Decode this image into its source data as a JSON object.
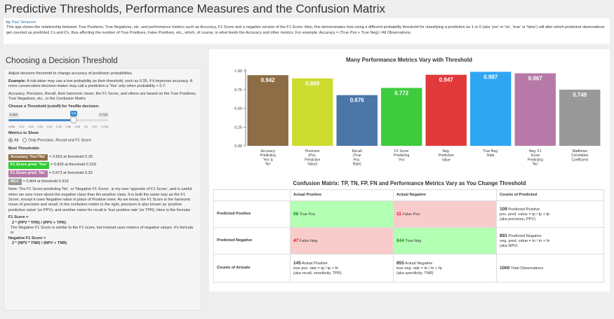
{
  "page": {
    "title": "Predictive Thresholds, Performance Measures and the Confusion Matrix",
    "by_prefix": "by ",
    "author": "Paul Simpson",
    "intro": "This app shows the relationship between True Positives, True Negatives, etc. and performance metrics such as Accuracy, F1 Score and a negative version of the F1 Score. Also, this demonstrates how using a different probability threshold for classifying a prediction as 1 or 0 (aka 'yes' or 'no', 'true' or 'false') will alter which predicted observations get counted as predicted 1's and 0's, thus affecting the number of True Positives, False Positives, etc., which, of course, is what feeds the Accuracy and other metrics. For example, Accuracy = (True Pos + True Neg) / All Observations."
  },
  "sidebar": {
    "heading": "Choosing a Decision Threshold",
    "p1": "Adjust decision threshold to change accuracy of prediction probabilities.",
    "example_label": "Example:",
    "example_text": " A risk-taker may use a low probability as their threshold, such as 0.35, if it improves accuracy. A more conservative decision-maker may call a prediction a 'Yes' only when probability > 0.7.",
    "p3": "Accuracy, Precision, Recall, their harmonic mean, the F1 Score, and others are based on the True Positives, True Negatives, etc., in the Confusion Matrix",
    "slider_label": "Choose a Threshold (cutoff) for Yes/No decision:",
    "slider": {
      "min": "0.054",
      "max": "0.734",
      "value": "0.5",
      "value_fraction": 0.655,
      "ticks": [
        "0.054",
        "0.12",
        "0.19",
        "0.26",
        "0.32",
        "0.39",
        "0.46",
        "0.53",
        "0.6",
        "0.67",
        "0.734"
      ]
    },
    "metrics_label": "Metrics to Show",
    "radio_all": "All",
    "radio_only": "Only Precision, Recall and F1 Score",
    "best_label": "Best Thresholds",
    "best": [
      {
        "badge": "Accuracy 'Yes'/'No'",
        "text": " = 0.953 at threshold 0.33",
        "color": "#8c6d46"
      },
      {
        "badge": "F1 Score pred. 'Yes'",
        "text": " = 0.829 at threshold 0.319",
        "color": "#2ecc2e"
      },
      {
        "badge": "F1 Score pred. 'No'",
        "text": " = 0.973 at threshold 0.33",
        "color": "#b77aa8"
      },
      {
        "badge": "MCC",
        "text": " = 0.804 at threshold 0.319",
        "color": "#999999"
      }
    ],
    "note": "Note: The F1 Score predicting 'No', or 'Negative F1 Score', is my own 'opposite of F1 Score', and is useful when we care more about the negative class than the positive class. It is built the same way as the F1 Score, except it uses Negative ratios in place of Positive ones. As we know, the F1 Score is the harmonic mean of precision and recall. In the confusion matrix to the right, precision is also known as 'positive predictive value' (or PPV), and another name for recall is 'true positive rate' (or TPR). Here is the formula:",
    "f1_label": "F1 Score =",
    "f1_formula": "2 * (PPV * TPR) / (PPV + TPR)",
    "neg_note": "The Negative F1 Score is similar to the F1 score, but instead uses metrics of negative values. It's formula is:",
    "nf1_label": "Negative F1 Score =",
    "nf1_formula": "2 * (NPV * TNR) / (NPV + TNR)"
  },
  "chart_data": {
    "type": "bar",
    "title": "Many Performance Metrics Vary with Threshold",
    "categories": [
      [
        "Accuracy",
        "Predicting",
        "'Yes' &",
        "'No'"
      ],
      [
        "Precision",
        "(Pos.",
        "Predictive",
        "Value)"
      ],
      [
        "Recall",
        "(True",
        "Pos.",
        "Rate)"
      ],
      [
        "F1 Score",
        "Predicting",
        "'Yes'"
      ],
      [
        "Neg.",
        "Predictive",
        "Value"
      ],
      [
        "True Neg.",
        "Rate"
      ],
      [
        "Neg. F1",
        "Score",
        "Predicting",
        "'No'"
      ],
      [
        "Matthews",
        "Correlation",
        "Coefficient"
      ]
    ],
    "values": [
      0.942,
      0.899,
      0.676,
      0.772,
      0.947,
      0.987,
      0.967,
      0.749
    ],
    "labels": [
      "0.942",
      "0.899",
      "0.676",
      "0.772",
      "0.947",
      "0.987",
      "0.967",
      "0.749"
    ],
    "colors": [
      "#8c6d46",
      "#cbdc2e",
      "#4a76a8",
      "#3ecb3e",
      "#e03a3a",
      "#2fa6f2",
      "#b77aa8",
      "#999999"
    ],
    "ylim": [
      0,
      1
    ],
    "yticks": [
      "0.00",
      "0.25",
      "0.50",
      "0.75",
      "1.00"
    ],
    "ytick_values": [
      0,
      0.25,
      0.5,
      0.75,
      1.0
    ]
  },
  "confusion": {
    "title": "Confusion Matrix: TP, TN, FP, FN and Performance Metrics Vary as You Change Threshold",
    "headers": [
      "",
      "Actual Positive",
      "Actual Negative",
      "Counts of Predicted"
    ],
    "pred_pos": "Predicted Positive",
    "pred_neg": "Predicted Negative",
    "counts_actuals": "Counts of Actuals",
    "tp": "98",
    "tp_label": " True Pos",
    "fp": "11",
    "fp_label": " False Pos",
    "fn": "47",
    "fn_label": " False Neg",
    "tn": "844",
    "tn_label": " True Neg",
    "pp_count": "109",
    "pp_l1": " Predicted Positive",
    "pp_l2": "pos. pred. value = tp / tp + fp",
    "pp_l3": "(aka precision, PPV)",
    "pn_count": "891",
    "pn_l1": " Predicted Negative",
    "pn_l2": "neg. pred. value = tn / tn + fn",
    "pn_l3": "(aka NPV)",
    "ap_count": "145",
    "ap_l1": " Actual Positive",
    "ap_l2": "true pos. rate = tp / tp + fn",
    "ap_l3": "(aka recall, sensitivity, TPR)",
    "an_count": "855",
    "an_l1": " Actual Negative",
    "an_l2": "true neg. rate = tn / tn + fp",
    "an_l3": "(aka specificity, TNR)",
    "total_count": "1000",
    "total_label": " Total Observations"
  }
}
